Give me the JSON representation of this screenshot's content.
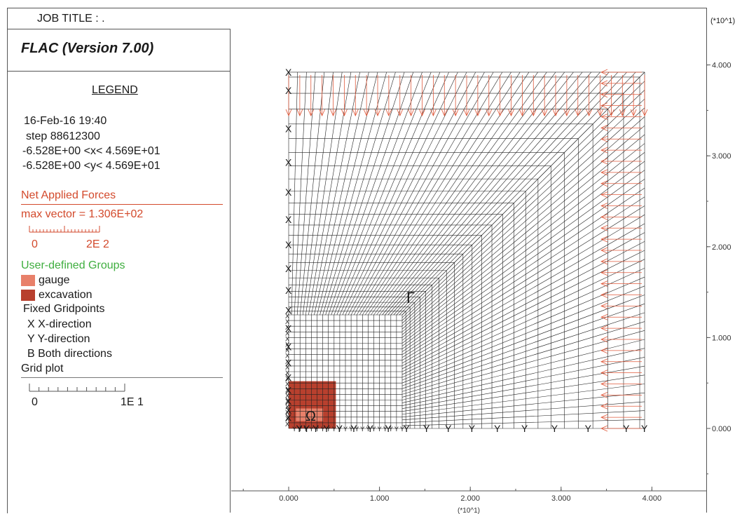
{
  "header": {
    "job_title": "JOB TITLE : .",
    "app_version": "FLAC (Version 7.00)",
    "axis_multiplier_right": "(*10^1)",
    "axis_multiplier_bottom": "(*10^1)"
  },
  "legend": {
    "title": "LEGEND",
    "date": "16-Feb-16  19:40",
    "step": "step  88612300",
    "x_range": "-6.528E+00 <x<  4.569E+01",
    "y_range": "-6.528E+00 <y<  4.569E+01",
    "net_forces_title": "Net Applied Forces",
    "max_vector": "max vector =    1.306E+02",
    "force_scale_min": "0",
    "force_scale_max": "2E  2",
    "groups_title": "User-defined Groups",
    "groups": [
      {
        "label": "gauge",
        "color": "#e8806a"
      },
      {
        "label": "excavation",
        "color": "#b8402e"
      }
    ],
    "fixed_title": "Fixed Gridpoints",
    "fixed_x": "X  X-direction",
    "fixed_y": "Y  Y-direction",
    "fixed_b": "B  Both directions",
    "grid_plot": "Grid plot",
    "grid_scale_min": "0",
    "grid_scale_max": "1E  1"
  },
  "axes": {
    "x_ticks": [
      "0.000",
      "1.000",
      "2.000",
      "3.000",
      "4.000"
    ],
    "y_ticks": [
      "0.000",
      "1.000",
      "2.000",
      "3.000",
      "4.000"
    ]
  },
  "plot": {
    "boundary_symbol_x": "X",
    "boundary_symbol_y": "Y",
    "label_gamma": "Γ",
    "label_omega": "Ω",
    "grid_color": "#222222",
    "force_color": "#e05a3c"
  },
  "colors": {
    "red_text": "#d34a2c",
    "green_text": "#3fae3f"
  }
}
